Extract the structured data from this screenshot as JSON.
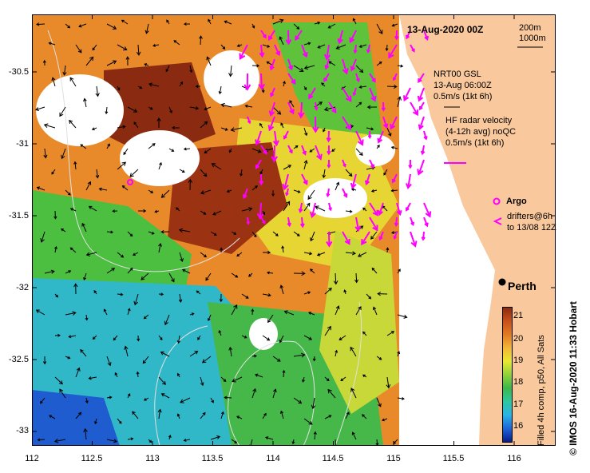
{
  "map": {
    "title": "13-Aug-2020 00Z",
    "contours": [
      "200m",
      "1000m"
    ],
    "gsl_label": [
      "NRT00 GSL",
      "13-Aug 06:00Z",
      "0.5m/s (1kt 6h)"
    ],
    "hf_label": [
      "HF radar velocity",
      "(4-12h avg) noQC",
      "0.5m/s (1kt 6h)"
    ],
    "argo_label": "Argo",
    "drifters_label": [
      "drifters@6h",
      "to 13/08 12Z"
    ],
    "city_label": "Perth",
    "y_ticks": [
      "-30.5",
      "-31",
      "-31.5",
      "-32",
      "-32.5",
      "-33"
    ],
    "x_ticks": [
      "112",
      "112.5",
      "113",
      "113.5",
      "114",
      "114.5",
      "115",
      "115.5",
      "116"
    ],
    "colorbar_ticks": [
      "21",
      "20",
      "19",
      "18",
      "17",
      "16"
    ],
    "colorbar_caption": "Filled 4h comp, p50, All Sats",
    "credit": "IMOS 16-Aug-2020 11:33 Hobart",
    "copyright": "©",
    "colors": {
      "land": "#f9c89c",
      "arrow_gsl": "#000000",
      "arrow_hf": "#ff00ff",
      "colorbar": [
        "#0a1a8c",
        "#1e66d8",
        "#2bb4e6",
        "#2ec7a0",
        "#3cb84a",
        "#8fd23a",
        "#e8e830",
        "#f2b636",
        "#e07a22",
        "#c8501a",
        "#8a2a10"
      ]
    }
  }
}
